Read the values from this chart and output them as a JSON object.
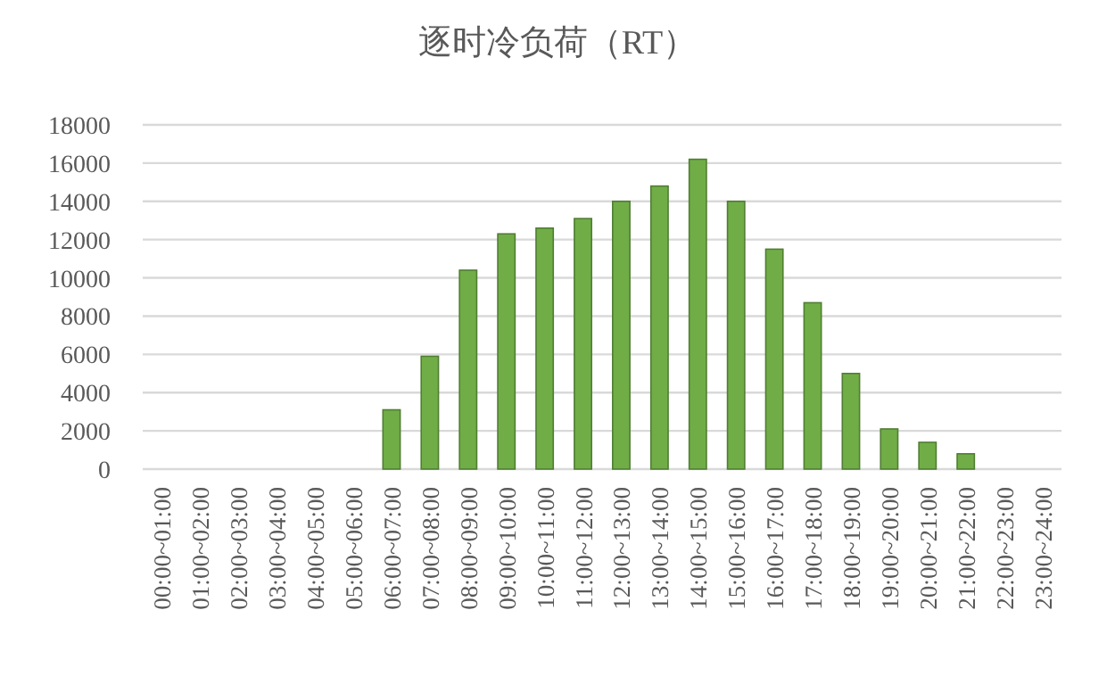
{
  "chart_data": {
    "type": "bar",
    "title": "逐时冷负荷（RT）",
    "categories": [
      "00:00~01:00",
      "01:00~02:00",
      "02:00~03:00",
      "03:00~04:00",
      "04:00~05:00",
      "05:00~06:00",
      "06:00~07:00",
      "07:00~08:00",
      "08:00~09:00",
      "09:00~10:00",
      "10:00~11:00",
      "11:00~12:00",
      "12:00~13:00",
      "13:00~14:00",
      "14:00~15:00",
      "15:00~16:00",
      "16:00~17:00",
      "17:00~18:00",
      "18:00~19:00",
      "19:00~20:00",
      "20:00~21:00",
      "21:00~22:00",
      "22:00~23:00",
      "23:00~24:00"
    ],
    "values": [
      0,
      0,
      0,
      0,
      0,
      0,
      3100,
      5900,
      10400,
      12300,
      12600,
      13100,
      14000,
      14800,
      16200,
      14000,
      11500,
      8700,
      5000,
      2100,
      1400,
      800,
      0,
      0
    ],
    "color": "#70ad47",
    "ylim": [
      0,
      18000
    ],
    "yticks": [
      0,
      2000,
      4000,
      6000,
      8000,
      10000,
      12000,
      14000,
      16000,
      18000
    ],
    "grid": "y"
  }
}
